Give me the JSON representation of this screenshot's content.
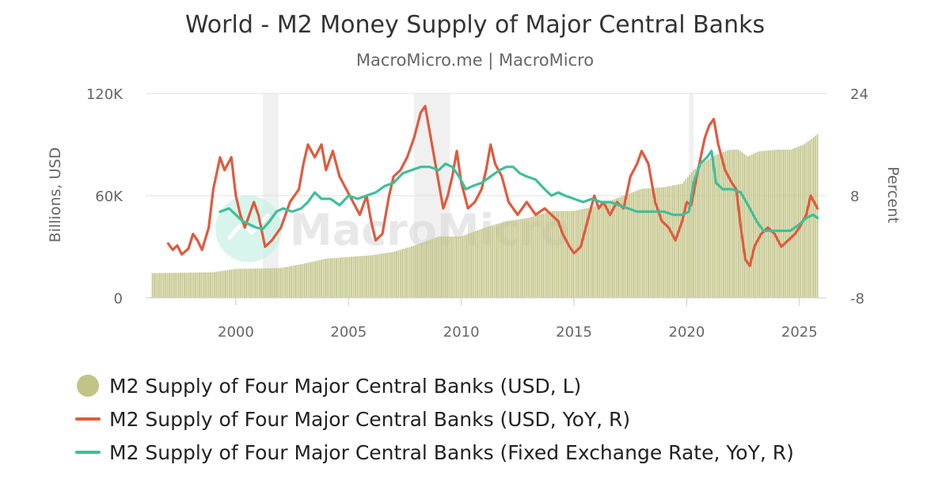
{
  "title": "World - M2 Money Supply of Major Central Banks",
  "subtitle": "MacroMicro.me | MacroMicro",
  "watermark": "MacroMicro",
  "colors": {
    "bar": "#c2c487",
    "usd_yoy": "#e05a3e",
    "fixed_fx_yoy": "#3fbf99",
    "recession": "#f0f0f0",
    "grid": "#e0e0e0",
    "watermark_circle": "#c9f2e5"
  },
  "chart_data": {
    "type": "bar+line",
    "title": "World - M2 Money Supply of Major Central Banks",
    "xlabel": "",
    "ylabel_left": "Billions, USD",
    "ylabel_right": "Percent",
    "xlim": [
      1996.0,
      2026.2
    ],
    "ylim_left": [
      0,
      120000
    ],
    "ylim_right": [
      -8,
      24
    ],
    "yticks_left": [
      {
        "value": 0,
        "label": "0"
      },
      {
        "value": 60000,
        "label": "60K"
      },
      {
        "value": 120000,
        "label": "120K"
      }
    ],
    "yticks_right": [
      {
        "value": -8,
        "label": "-8"
      },
      {
        "value": 8,
        "label": "8"
      },
      {
        "value": 24,
        "label": "24"
      }
    ],
    "xticks": [
      {
        "value": 2000,
        "label": "2000"
      },
      {
        "value": 2005,
        "label": "2005"
      },
      {
        "value": 2010,
        "label": "2010"
      },
      {
        "value": 2015,
        "label": "2015"
      },
      {
        "value": 2020,
        "label": "2020"
      },
      {
        "value": 2025,
        "label": "2025"
      }
    ],
    "recession_shading": [
      [
        2001.2,
        2001.9
      ],
      [
        2007.9,
        2009.5
      ],
      [
        2020.1,
        2020.3
      ]
    ],
    "bars": {
      "name": "M2 Supply of Four Major Central Banks (USD, L)",
      "axis": "left",
      "keypoints": [
        [
          1996.3,
          14500
        ],
        [
          1999.0,
          15000
        ],
        [
          2000.0,
          17000
        ],
        [
          2002.0,
          17500
        ],
        [
          2003.0,
          20000
        ],
        [
          2004.0,
          23000
        ],
        [
          2005.0,
          24000
        ],
        [
          2006.0,
          25000
        ],
        [
          2007.0,
          27000
        ],
        [
          2008.0,
          31000
        ],
        [
          2009.0,
          36000
        ],
        [
          2010.0,
          36000
        ],
        [
          2011.0,
          41000
        ],
        [
          2012.0,
          45000
        ],
        [
          2013.0,
          47000
        ],
        [
          2014.0,
          51000
        ],
        [
          2015.0,
          51000
        ],
        [
          2016.0,
          54000
        ],
        [
          2017.0,
          59000
        ],
        [
          2018.0,
          64000
        ],
        [
          2019.0,
          65000
        ],
        [
          2019.8,
          67000
        ],
        [
          2020.3,
          75000
        ],
        [
          2020.8,
          80000
        ],
        [
          2021.3,
          84000
        ],
        [
          2021.9,
          87000
        ],
        [
          2022.3,
          87000
        ],
        [
          2022.7,
          83000
        ],
        [
          2023.2,
          86000
        ],
        [
          2024.0,
          87000
        ],
        [
          2024.6,
          87000
        ],
        [
          2025.2,
          90000
        ],
        [
          2025.8,
          96000
        ]
      ]
    },
    "series": [
      {
        "name": "M2 Supply of Four Major Central Banks (USD, YoY, R)",
        "axis": "right",
        "points": [
          [
            1997.0,
            0.5
          ],
          [
            1997.2,
            -0.5
          ],
          [
            1997.4,
            0.2
          ],
          [
            1997.6,
            -1.2
          ],
          [
            1997.9,
            -0.3
          ],
          [
            1998.1,
            2.0
          ],
          [
            1998.3,
            1.0
          ],
          [
            1998.5,
            -0.5
          ],
          [
            1998.8,
            3.0
          ],
          [
            1999.0,
            9.0
          ],
          [
            1999.3,
            14.0
          ],
          [
            1999.5,
            12.0
          ],
          [
            1999.8,
            14.0
          ],
          [
            2000.0,
            8.0
          ],
          [
            2000.2,
            5.0
          ],
          [
            2000.4,
            3.0
          ],
          [
            2000.6,
            5.0
          ],
          [
            2000.8,
            7.0
          ],
          [
            2001.0,
            5.0
          ],
          [
            2001.3,
            0.0
          ],
          [
            2001.6,
            1.0
          ],
          [
            2002.0,
            3.0
          ],
          [
            2002.4,
            7.0
          ],
          [
            2002.8,
            9.0
          ],
          [
            2003.0,
            13.0
          ],
          [
            2003.2,
            16.0
          ],
          [
            2003.5,
            14.0
          ],
          [
            2003.8,
            16.0
          ],
          [
            2004.0,
            12.0
          ],
          [
            2004.3,
            15.0
          ],
          [
            2004.6,
            11.0
          ],
          [
            2004.9,
            9.0
          ],
          [
            2005.2,
            7.0
          ],
          [
            2005.5,
            5.0
          ],
          [
            2005.8,
            8.0
          ],
          [
            2006.0,
            4.0
          ],
          [
            2006.2,
            1.0
          ],
          [
            2006.5,
            2.0
          ],
          [
            2006.8,
            8.0
          ],
          [
            2007.0,
            11.0
          ],
          [
            2007.3,
            12.0
          ],
          [
            2007.6,
            14.0
          ],
          [
            2007.9,
            17.0
          ],
          [
            2008.2,
            21.0
          ],
          [
            2008.4,
            22.0
          ],
          [
            2008.6,
            18.0
          ],
          [
            2008.8,
            14.0
          ],
          [
            2009.0,
            10.0
          ],
          [
            2009.2,
            6.0
          ],
          [
            2009.4,
            8.0
          ],
          [
            2009.6,
            11.0
          ],
          [
            2009.8,
            15.0
          ],
          [
            2010.0,
            10.0
          ],
          [
            2010.3,
            6.0
          ],
          [
            2010.6,
            7.0
          ],
          [
            2010.9,
            9.0
          ],
          [
            2011.1,
            12.0
          ],
          [
            2011.3,
            16.0
          ],
          [
            2011.5,
            13.0
          ],
          [
            2011.8,
            11.0
          ],
          [
            2012.1,
            7.0
          ],
          [
            2012.5,
            5.0
          ],
          [
            2012.9,
            7.0
          ],
          [
            2013.3,
            5.0
          ],
          [
            2013.7,
            6.0
          ],
          [
            2014.0,
            5.0
          ],
          [
            2014.3,
            4.0
          ],
          [
            2014.5,
            2.0
          ],
          [
            2014.8,
            0.0
          ],
          [
            2015.0,
            -1.0
          ],
          [
            2015.3,
            0.0
          ],
          [
            2015.6,
            4.0
          ],
          [
            2015.9,
            8.0
          ],
          [
            2016.1,
            6.0
          ],
          [
            2016.3,
            7.0
          ],
          [
            2016.6,
            5.0
          ],
          [
            2016.9,
            7.0
          ],
          [
            2017.2,
            6.0
          ],
          [
            2017.5,
            11.0
          ],
          [
            2017.8,
            13.0
          ],
          [
            2018.0,
            15.0
          ],
          [
            2018.3,
            13.0
          ],
          [
            2018.6,
            7.0
          ],
          [
            2018.9,
            4.0
          ],
          [
            2019.2,
            3.0
          ],
          [
            2019.5,
            1.0
          ],
          [
            2019.8,
            4.0
          ],
          [
            2020.0,
            7.0
          ],
          [
            2020.2,
            6.5
          ],
          [
            2020.5,
            12.0
          ],
          [
            2020.8,
            17.0
          ],
          [
            2021.0,
            19.0
          ],
          [
            2021.2,
            20.0
          ],
          [
            2021.4,
            16.0
          ],
          [
            2021.7,
            12.0
          ],
          [
            2022.0,
            10.0
          ],
          [
            2022.2,
            9.0
          ],
          [
            2022.4,
            3.0
          ],
          [
            2022.6,
            -2.0
          ],
          [
            2022.8,
            -3.0
          ],
          [
            2023.0,
            0.0
          ],
          [
            2023.3,
            2.0
          ],
          [
            2023.6,
            3.0
          ],
          [
            2023.9,
            2.0
          ],
          [
            2024.2,
            0.0
          ],
          [
            2024.5,
            1.0
          ],
          [
            2024.8,
            2.0
          ],
          [
            2025.0,
            3.0
          ],
          [
            2025.3,
            5.0
          ],
          [
            2025.5,
            8.0
          ],
          [
            2025.8,
            6.0
          ]
        ]
      },
      {
        "name": "M2 Supply of Four Major Central Banks (Fixed Exchange Rate, YoY, R)",
        "axis": "right",
        "points": [
          [
            1999.3,
            5.5
          ],
          [
            1999.7,
            6.0
          ],
          [
            2000.0,
            5.0
          ],
          [
            2000.3,
            4.0
          ],
          [
            2000.6,
            3.5
          ],
          [
            2000.9,
            3.0
          ],
          [
            2001.2,
            2.8
          ],
          [
            2001.5,
            4.0
          ],
          [
            2001.8,
            5.5
          ],
          [
            2002.1,
            6.0
          ],
          [
            2002.5,
            5.5
          ],
          [
            2002.9,
            6.0
          ],
          [
            2003.2,
            7.0
          ],
          [
            2003.5,
            8.5
          ],
          [
            2003.8,
            7.5
          ],
          [
            2004.2,
            7.5
          ],
          [
            2004.6,
            6.5
          ],
          [
            2005.0,
            8.0
          ],
          [
            2005.4,
            7.5
          ],
          [
            2005.8,
            8.0
          ],
          [
            2006.2,
            8.5
          ],
          [
            2006.6,
            9.5
          ],
          [
            2007.0,
            10.0
          ],
          [
            2007.4,
            11.5
          ],
          [
            2007.8,
            12.0
          ],
          [
            2008.2,
            12.5
          ],
          [
            2008.6,
            12.5
          ],
          [
            2009.0,
            12.0
          ],
          [
            2009.3,
            13.0
          ],
          [
            2009.6,
            12.5
          ],
          [
            2009.9,
            11.0
          ],
          [
            2010.2,
            9.0
          ],
          [
            2010.5,
            9.5
          ],
          [
            2010.9,
            10.0
          ],
          [
            2011.3,
            11.0
          ],
          [
            2011.7,
            12.0
          ],
          [
            2012.0,
            12.5
          ],
          [
            2012.3,
            12.5
          ],
          [
            2012.6,
            11.5
          ],
          [
            2012.9,
            11.0
          ],
          [
            2013.3,
            10.5
          ],
          [
            2013.7,
            9.0
          ],
          [
            2014.0,
            8.0
          ],
          [
            2014.3,
            8.5
          ],
          [
            2014.6,
            8.0
          ],
          [
            2015.0,
            7.5
          ],
          [
            2015.4,
            7.0
          ],
          [
            2015.8,
            7.5
          ],
          [
            2016.2,
            7.0
          ],
          [
            2016.6,
            7.0
          ],
          [
            2017.0,
            6.5
          ],
          [
            2017.4,
            6.0
          ],
          [
            2017.8,
            5.5
          ],
          [
            2018.2,
            5.5
          ],
          [
            2018.6,
            5.5
          ],
          [
            2019.0,
            5.5
          ],
          [
            2019.4,
            5.0
          ],
          [
            2019.8,
            5.0
          ],
          [
            2020.1,
            5.5
          ],
          [
            2020.3,
            10.0
          ],
          [
            2020.6,
            13.0
          ],
          [
            2020.9,
            14.0
          ],
          [
            2021.1,
            15.0
          ],
          [
            2021.3,
            10.0
          ],
          [
            2021.6,
            9.0
          ],
          [
            2022.0,
            9.0
          ],
          [
            2022.4,
            8.5
          ],
          [
            2022.8,
            6.0
          ],
          [
            2023.1,
            4.0
          ],
          [
            2023.4,
            2.5
          ],
          [
            2023.8,
            2.5
          ],
          [
            2024.2,
            2.5
          ],
          [
            2024.6,
            2.5
          ],
          [
            2025.0,
            3.5
          ],
          [
            2025.3,
            4.5
          ],
          [
            2025.6,
            5.0
          ],
          [
            2025.8,
            4.5
          ]
        ]
      }
    ],
    "legend_position": "bottom-left"
  },
  "legend": [
    {
      "label": "M2 Supply of Four Major Central Banks (USD, L)",
      "marker": "dot"
    },
    {
      "label": "M2 Supply of Four Major Central Banks (USD, YoY, R)",
      "marker": "line"
    },
    {
      "label": "M2 Supply of Four Major Central Banks (Fixed Exchange Rate, YoY, R)",
      "marker": "line"
    }
  ]
}
